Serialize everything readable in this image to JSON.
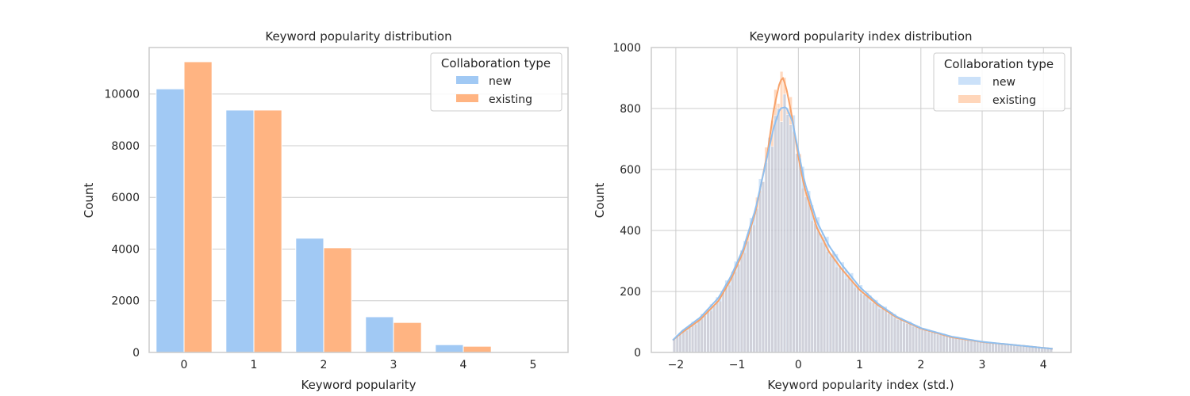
{
  "colors": {
    "new": "#a1c9f4",
    "existing": "#ffb482",
    "new_line": "#8fbfef",
    "existing_line": "#f7a26a"
  },
  "chart_data": [
    {
      "type": "bar",
      "title": "Keyword popularity distribution",
      "xlabel": "Keyword popularity",
      "ylabel": "Count",
      "categories": [
        "0",
        "1",
        "2",
        "3",
        "4",
        "5"
      ],
      "series": [
        {
          "name": "new",
          "values": [
            10200,
            9380,
            4420,
            1380,
            300,
            5
          ]
        },
        {
          "name": "existing",
          "values": [
            11250,
            9380,
            4050,
            1160,
            240,
            5
          ]
        }
      ],
      "ylim": [
        0,
        11800
      ],
      "yticks": [
        0,
        2000,
        4000,
        6000,
        8000,
        10000
      ],
      "legend": {
        "title": "Collaboration type",
        "position": "top-right",
        "entries": [
          "new",
          "existing"
        ]
      },
      "grid": "y"
    },
    {
      "type": "histogram",
      "title": "Keyword popularity index distribution",
      "xlabel": "Keyword popularity index (std.)",
      "ylabel": "Count",
      "xlim": [
        -2.4,
        4.45
      ],
      "ylim": [
        0,
        1000
      ],
      "xticks": [
        -2,
        -1,
        0,
        1,
        2,
        3,
        4
      ],
      "xtick_labels": [
        "−2",
        "−1",
        "0",
        "1",
        "2",
        "3",
        "4"
      ],
      "yticks": [
        0,
        200,
        400,
        600,
        800,
        1000
      ],
      "bin_start": -2.05,
      "bin_width": 0.05,
      "series": [
        {
          "name": "new",
          "kde": [
            [
              -2.05,
              40
            ],
            [
              -1.9,
              70
            ],
            [
              -1.6,
              115
            ],
            [
              -1.3,
              180
            ],
            [
              -1.1,
              250
            ],
            [
              -0.9,
              340
            ],
            [
              -0.7,
              470
            ],
            [
              -0.5,
              650
            ],
            [
              -0.4,
              740
            ],
            [
              -0.3,
              800
            ],
            [
              -0.2,
              805
            ],
            [
              -0.1,
              760
            ],
            [
              0.0,
              660
            ],
            [
              0.1,
              560
            ],
            [
              0.3,
              430
            ],
            [
              0.5,
              350
            ],
            [
              0.7,
              290
            ],
            [
              1.0,
              215
            ],
            [
              1.3,
              160
            ],
            [
              1.6,
              118
            ],
            [
              2.0,
              80
            ],
            [
              2.5,
              52
            ],
            [
              3.0,
              35
            ],
            [
              3.5,
              25
            ],
            [
              4.15,
              12
            ]
          ]
        },
        {
          "name": "existing",
          "kde": [
            [
              -2.05,
              40
            ],
            [
              -1.9,
              65
            ],
            [
              -1.6,
              108
            ],
            [
              -1.3,
              170
            ],
            [
              -1.1,
              240
            ],
            [
              -0.9,
              330
            ],
            [
              -0.7,
              460
            ],
            [
              -0.5,
              660
            ],
            [
              -0.4,
              800
            ],
            [
              -0.3,
              890
            ],
            [
              -0.25,
              900
            ],
            [
              -0.2,
              870
            ],
            [
              -0.1,
              770
            ],
            [
              0.0,
              640
            ],
            [
              0.1,
              540
            ],
            [
              0.3,
              410
            ],
            [
              0.5,
              330
            ],
            [
              0.7,
              275
            ],
            [
              1.0,
              205
            ],
            [
              1.3,
              155
            ],
            [
              1.6,
              115
            ],
            [
              2.0,
              78
            ],
            [
              2.5,
              50
            ],
            [
              3.0,
              34
            ],
            [
              3.5,
              25
            ],
            [
              4.15,
              12
            ]
          ]
        }
      ],
      "legend": {
        "title": "Collaboration type",
        "position": "top-right",
        "entries": [
          "new",
          "existing"
        ]
      },
      "grid": "both"
    }
  ]
}
